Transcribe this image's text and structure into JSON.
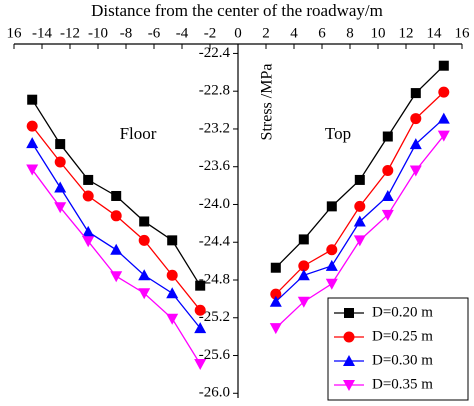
{
  "chart_data": {
    "type": "line",
    "title": "Distance from the center of  the roadway/m",
    "ylabel": "Stress /MPa",
    "annotations": [
      "Floor",
      "Top"
    ],
    "x": [
      -14.7,
      -12.7,
      -10.7,
      -8.7,
      -6.7,
      -4.7,
      -2.7,
      2.7,
      4.7,
      6.7,
      8.7,
      10.7,
      12.7,
      14.7
    ],
    "series": [
      {
        "name": "D=0.20 m",
        "color": "#000000",
        "marker": "square",
        "values": [
          -22.89,
          -23.36,
          -23.74,
          -23.91,
          -24.18,
          -24.38,
          -24.86,
          -24.67,
          -24.37,
          -24.02,
          -23.74,
          -23.28,
          -22.82,
          -22.53
        ]
      },
      {
        "name": "D=0.25 m",
        "color": "#ff0000",
        "marker": "circle",
        "values": [
          -23.17,
          -23.55,
          -23.91,
          -24.12,
          -24.38,
          -24.75,
          -25.12,
          -24.95,
          -24.65,
          -24.48,
          -24.02,
          -23.64,
          -23.09,
          -22.81
        ]
      },
      {
        "name": "D=0.30 m",
        "color": "#0000ff",
        "marker": "triangle-up",
        "values": [
          -23.35,
          -23.82,
          -24.29,
          -24.48,
          -24.75,
          -24.94,
          -25.31,
          -25.03,
          -24.75,
          -24.65,
          -24.18,
          -23.91,
          -23.36,
          -23.09
        ]
      },
      {
        "name": "D=0.35 m",
        "color": "#ff00ff",
        "marker": "triangle-down",
        "values": [
          -23.63,
          -24.03,
          -24.39,
          -24.76,
          -24.94,
          -25.21,
          -25.69,
          -25.31,
          -25.03,
          -24.84,
          -24.38,
          -24.11,
          -23.64,
          -23.27
        ]
      }
    ],
    "xlim": [
      -16,
      16
    ],
    "xticks": [
      {
        "value": -16,
        "label": "16"
      },
      -14,
      -12,
      -10,
      -8,
      -6,
      -4,
      -2,
      0,
      2,
      4,
      6,
      8,
      10,
      12,
      14,
      16
    ],
    "ylim": [
      -26.05,
      -22.3
    ],
    "yticks": [
      {
        "value": -22.4,
        "label": "-22.4"
      },
      {
        "value": -22.8,
        "label": "-22.8"
      },
      {
        "value": -23.2,
        "label": "-23.2"
      },
      {
        "value": -23.6,
        "label": "-23.6"
      },
      {
        "value": -24.0,
        "label": "-24.0"
      },
      {
        "value": -24.4,
        "label": "-24.4"
      },
      {
        "value": -24.8,
        "label": "-24.8"
      },
      {
        "value": -25.2,
        "label": "-25.2"
      },
      {
        "value": -25.6,
        "label": "-25.6"
      },
      {
        "value": -26.0,
        "label": "-26.0"
      }
    ],
    "legend": "lower right"
  }
}
